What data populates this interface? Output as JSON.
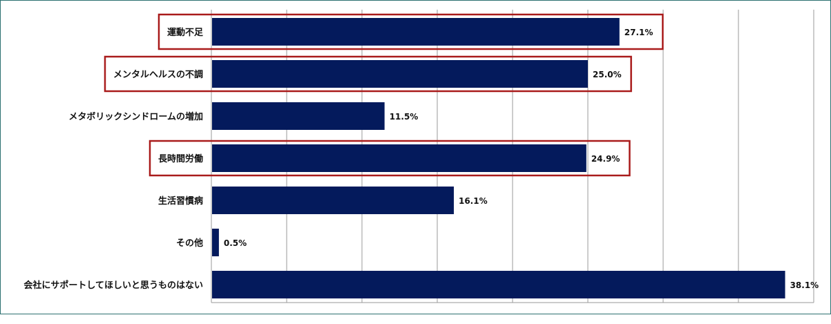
{
  "chart_data": {
    "type": "bar",
    "orientation": "horizontal",
    "categories": [
      "運動不足",
      "メンタルヘルスの不調",
      "メタボリックシンドロームの増加",
      "長時間労働",
      "生活習慣病",
      "その他",
      "会社にサポートしてほしいと思うものはない"
    ],
    "values": [
      27.1,
      25.0,
      11.5,
      24.9,
      16.1,
      0.5,
      38.1
    ],
    "value_labels": [
      "27.1%",
      "25.0%",
      "11.5%",
      "24.9%",
      "16.1%",
      "0.5%",
      "38.1%"
    ],
    "highlighted": [
      true,
      true,
      false,
      true,
      false,
      false,
      false
    ],
    "xlim": [
      0,
      40
    ],
    "grid": true,
    "gridline_count": 8,
    "colors": {
      "bar": "#041a5c",
      "highlight_border": "#a91b1b",
      "grid": "#9a9a9a",
      "frame": "#2a6f6f"
    }
  }
}
